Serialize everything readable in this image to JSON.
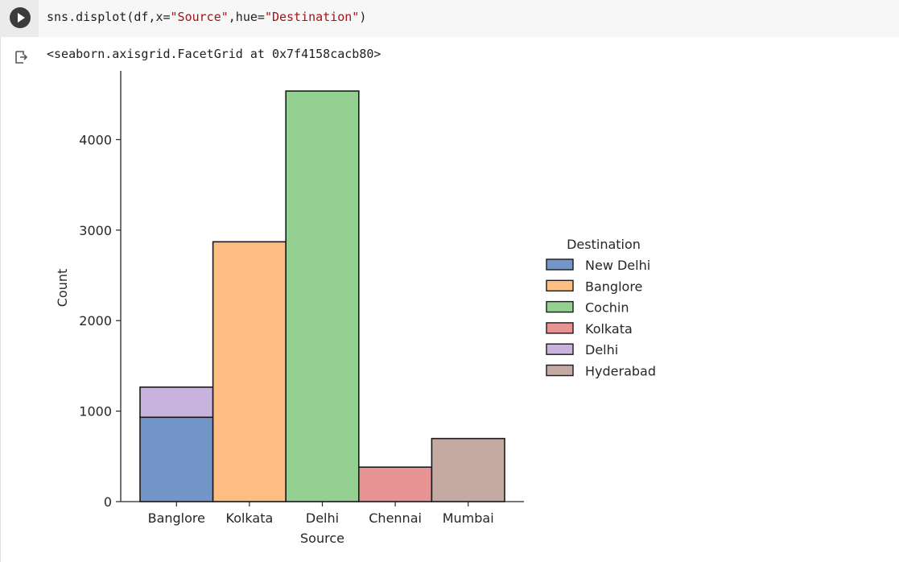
{
  "cell": {
    "code_prefix": "sns.displot(df,x=",
    "code_x": "\"Source\"",
    "code_mid": ",hue=",
    "code_hue": "\"Destination\"",
    "code_suffix": ")",
    "output_text": "<seaborn.axisgrid.FacetGrid at 0x7f4158cacb80>"
  },
  "chart_data": {
    "type": "bar",
    "xlabel": "Source",
    "ylabel": "Count",
    "ylim": [
      0,
      4760
    ],
    "yticks": [
      0,
      1000,
      2000,
      3000,
      4000
    ],
    "categories": [
      "Banglore",
      "Kolkata",
      "Delhi",
      "Chennai",
      "Mumbai"
    ],
    "stacked": true,
    "series": [
      {
        "name": "New Delhi",
        "color": "#7495c8",
        "values": [
          932,
          0,
          0,
          0,
          0
        ]
      },
      {
        "name": "Banglore",
        "color": "#ffbd83",
        "values": [
          0,
          2871,
          0,
          0,
          0
        ]
      },
      {
        "name": "Cochin",
        "color": "#95d093",
        "values": [
          0,
          0,
          4537,
          0,
          0
        ]
      },
      {
        "name": "Kolkata",
        "color": "#e79293",
        "values": [
          0,
          0,
          0,
          381,
          0
        ]
      },
      {
        "name": "Delhi",
        "color": "#c8b3dc",
        "values": [
          333,
          0,
          0,
          0,
          0
        ]
      },
      {
        "name": "Hyderabad",
        "color": "#c5aaa4",
        "values": [
          0,
          0,
          0,
          0,
          697
        ]
      }
    ],
    "legend_title": "Destination",
    "legend_position": "right"
  }
}
